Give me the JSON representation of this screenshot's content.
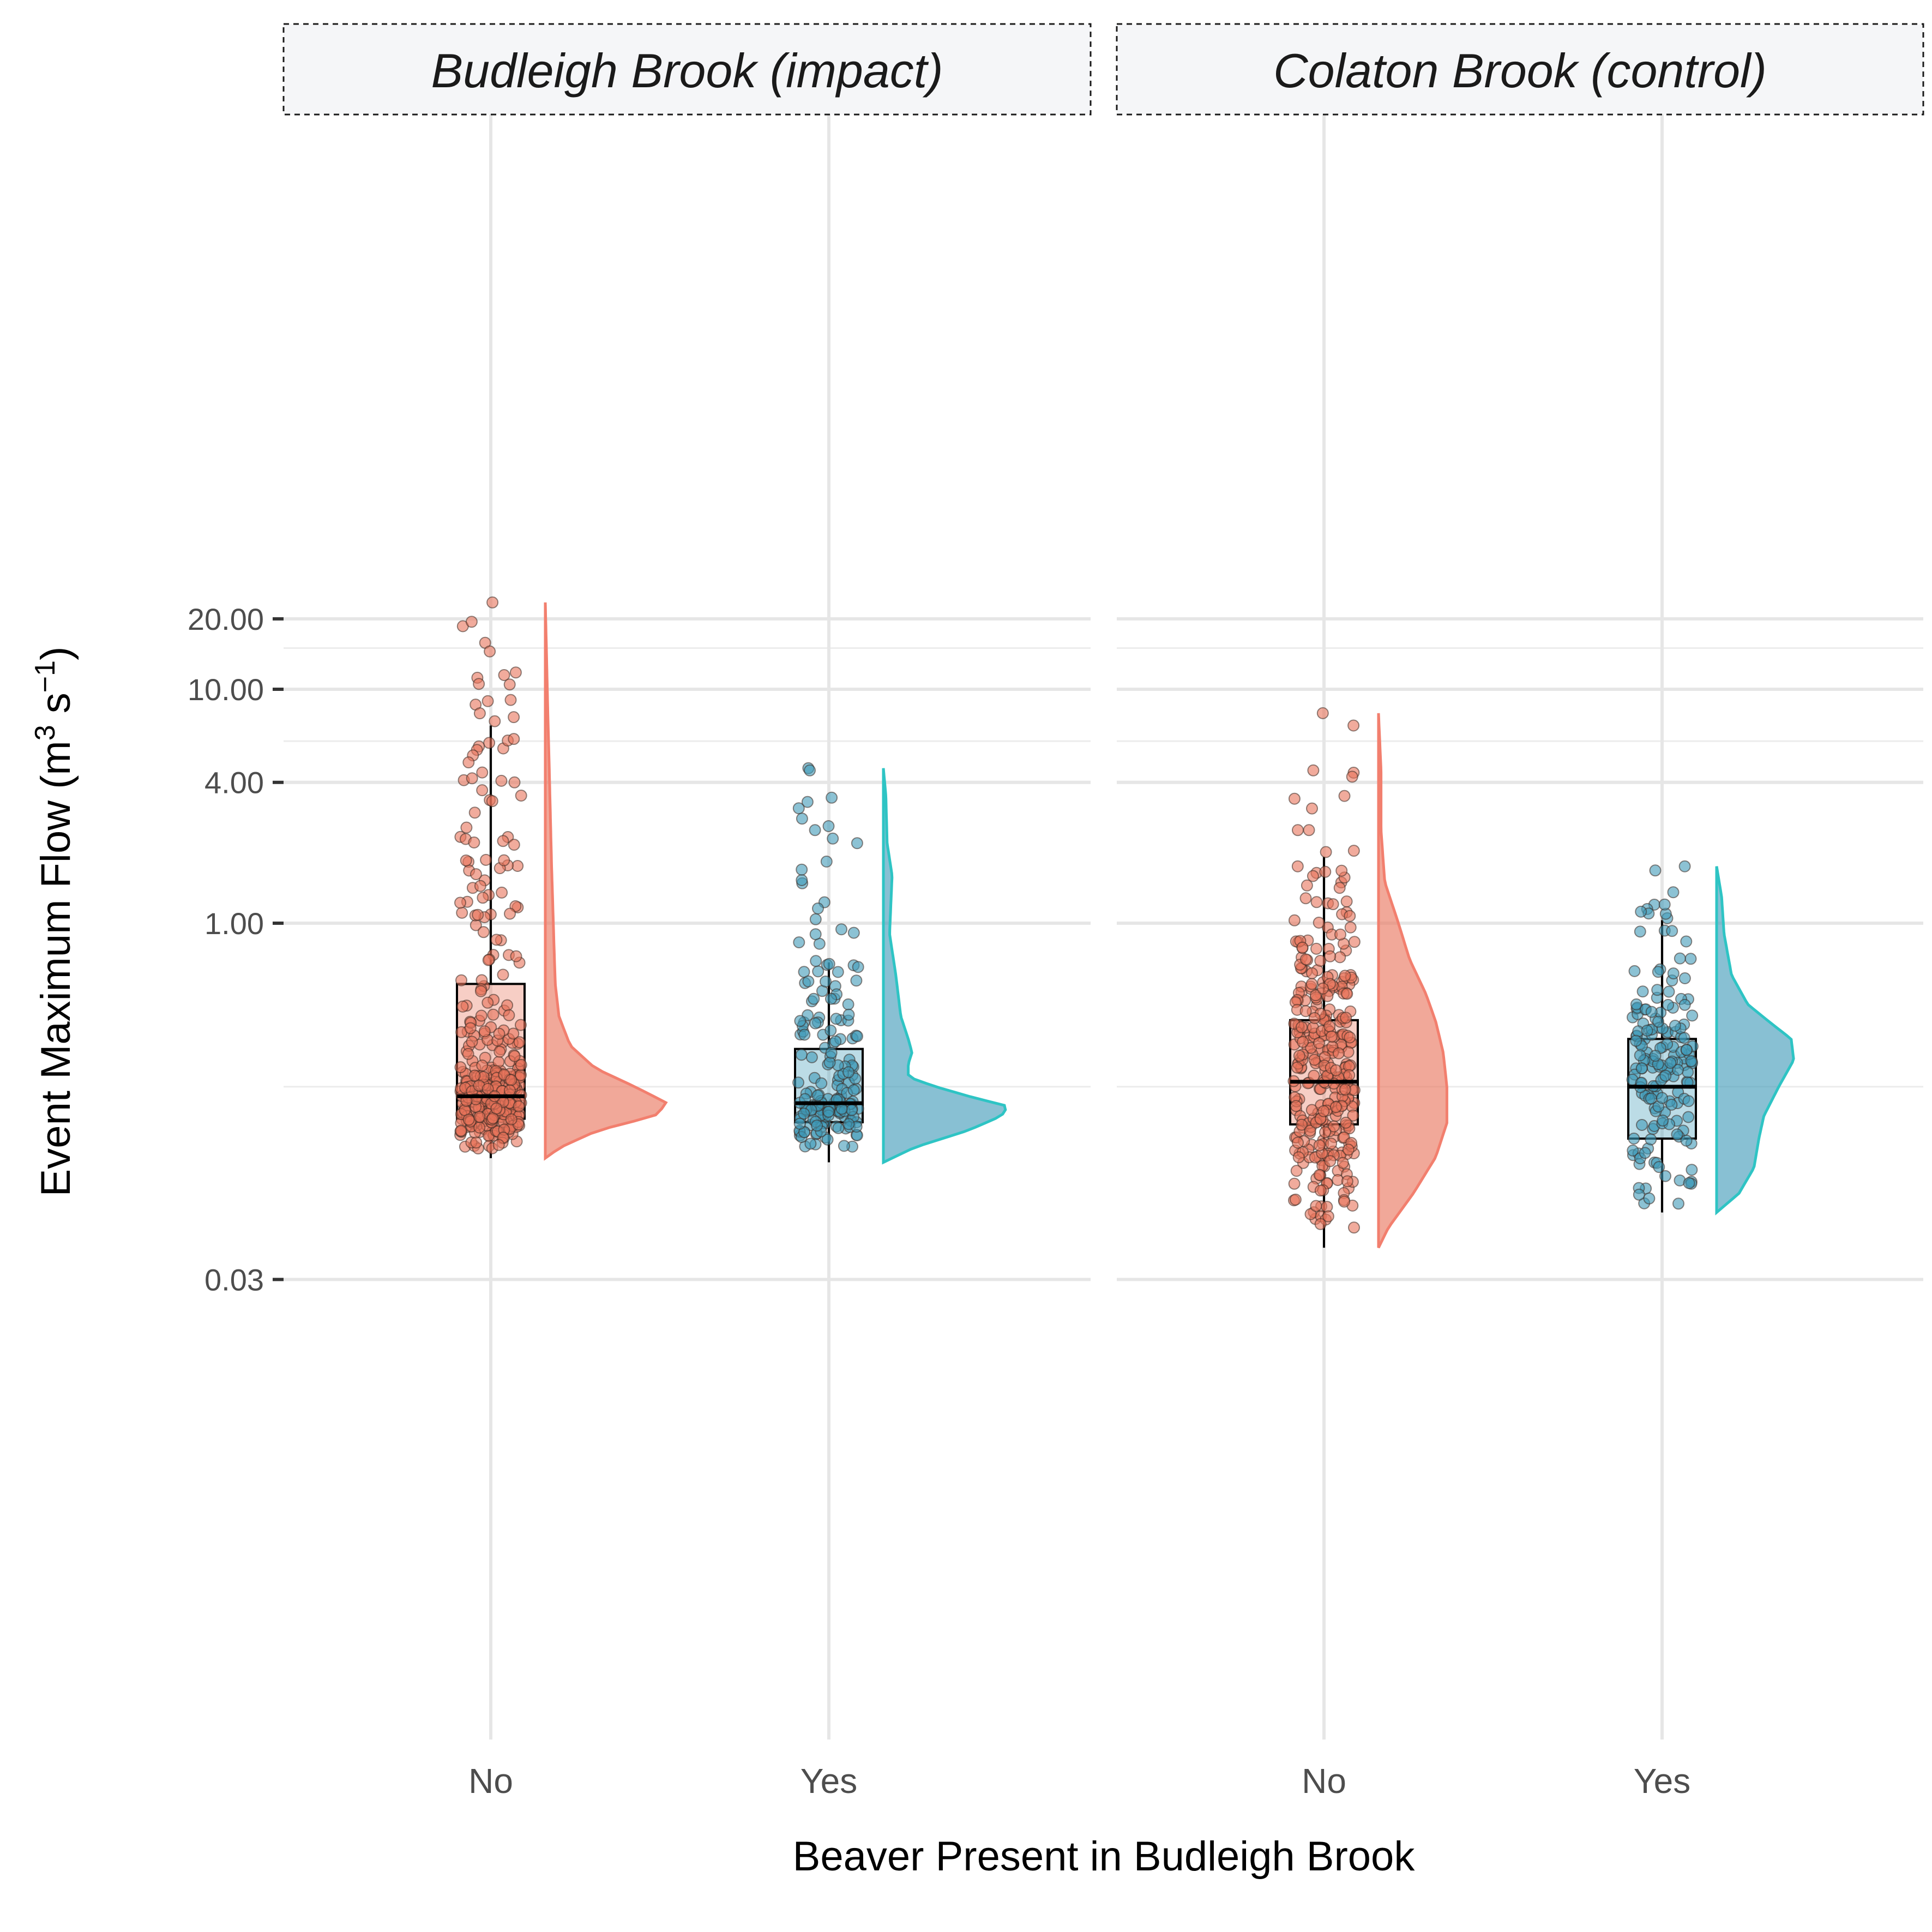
{
  "chart_data": {
    "type": "raincloud",
    "xlabel": "Beaver Present in Budleigh Brook",
    "ylabel": "Event Maximum Flow",
    "ylabel_unit": {
      "base": "m",
      "base_sup": "3",
      "sep": " s",
      "sep_sup": "−1"
    },
    "yscale": "log",
    "ylim": [
      0.03,
      35
    ],
    "y_ticks": [
      0.03,
      1,
      4,
      10,
      20
    ],
    "y_tick_labels": [
      "0.03",
      "1.00",
      "4.00",
      "10.00",
      "20.00"
    ],
    "y_minor_gridlines": [
      0.2,
      6,
      15
    ],
    "categories": [
      "No",
      "Yes"
    ],
    "colors": {
      "No": "#e8735a",
      "Yes": "#3f9ab8",
      "No_outline": "#f27f6e",
      "Yes_outline": "#2ec4c4"
    },
    "grid": true,
    "legend": "none",
    "panels": [
      {
        "strip": "Budleigh Brook (impact)",
        "groups": [
          {
            "category": "No",
            "n_points": 370,
            "box": {
              "q1": 0.146,
              "median": 0.182,
              "q3": 0.55,
              "whisker_low": 0.099,
              "whisker_high": 7.0
            },
            "range": [
              0.099,
              23.5
            ],
            "density": [
              [
                0.099,
                0.0
              ],
              [
                0.11,
                0.12
              ],
              [
                0.13,
                0.42
              ],
              [
                0.15,
                0.88
              ],
              [
                0.17,
                0.98
              ],
              [
                0.2,
                0.72
              ],
              [
                0.24,
                0.4
              ],
              [
                0.3,
                0.2
              ],
              [
                0.4,
                0.11
              ],
              [
                0.55,
                0.08
              ],
              [
                0.8,
                0.07
              ],
              [
                1.2,
                0.06
              ],
              [
                1.8,
                0.05
              ],
              [
                3,
                0.04
              ],
              [
                5,
                0.03
              ],
              [
                8,
                0.02
              ],
              [
                14,
                0.01
              ],
              [
                23.5,
                0.0
              ]
            ],
            "notable_points": [
              23.5,
              15.8,
              11.8,
              11.5,
              11.2,
              9.0,
              8.6,
              7.6,
              7.3,
              5.9,
              5.7
            ]
          },
          {
            "category": "Yes",
            "n_points": 180,
            "box": {
              "q1": 0.141,
              "median": 0.17,
              "q3": 0.29,
              "whisker_low": 0.095,
              "whisker_high": 0.68
            },
            "range": [
              0.095,
              4.6
            ],
            "density": [
              [
                0.095,
                0.0
              ],
              [
                0.11,
                0.25
              ],
              [
                0.13,
                0.68
              ],
              [
                0.15,
                0.95
              ],
              [
                0.165,
                1.0
              ],
              [
                0.18,
                0.72
              ],
              [
                0.2,
                0.42
              ],
              [
                0.22,
                0.2
              ],
              [
                0.25,
                0.2
              ],
              [
                0.28,
                0.23
              ],
              [
                0.32,
                0.2
              ],
              [
                0.4,
                0.14
              ],
              [
                0.6,
                0.1
              ],
              [
                0.9,
                0.05
              ],
              [
                1.6,
                0.07
              ],
              [
                2.2,
                0.03
              ],
              [
                3.5,
                0.02
              ],
              [
                4.6,
                0.0
              ]
            ],
            "notable_points": [
              4.6,
              4.5,
              3.3,
              3.1,
              2.8,
              2.6,
              2.5,
              2.3
            ]
          }
        ]
      },
      {
        "strip": "Colaton Brook (control)",
        "groups": [
          {
            "category": "No",
            "n_points": 330,
            "box": {
              "q1": 0.138,
              "median": 0.21,
              "q3": 0.385,
              "whisker_low": 0.041,
              "whisker_high": 1.92
            },
            "range": [
              0.041,
              7.9
            ],
            "density": [
              [
                0.041,
                0.0
              ],
              [
                0.05,
                0.08
              ],
              [
                0.07,
                0.28
              ],
              [
                0.1,
                0.46
              ],
              [
                0.14,
                0.55
              ],
              [
                0.2,
                0.55
              ],
              [
                0.28,
                0.52
              ],
              [
                0.38,
                0.46
              ],
              [
                0.5,
                0.38
              ],
              [
                0.7,
                0.25
              ],
              [
                1.0,
                0.16
              ],
              [
                1.5,
                0.05
              ],
              [
                2.5,
                0.02
              ],
              [
                4.5,
                0.02
              ],
              [
                7.9,
                0.0
              ]
            ],
            "notable_points": [
              7.9,
              7.0,
              4.5,
              4.4,
              3.5,
              2.5,
              2.5
            ]
          },
          {
            "category": "Yes",
            "n_points": 170,
            "box": {
              "q1": 0.12,
              "median": 0.2,
              "q3": 0.32,
              "whisker_low": 0.058,
              "whisker_high": 1.03
            },
            "range": [
              0.058,
              1.75
            ],
            "density": [
              [
                0.058,
                0.0
              ],
              [
                0.07,
                0.18
              ],
              [
                0.09,
                0.3
              ],
              [
                0.12,
                0.34
              ],
              [
                0.15,
                0.38
              ],
              [
                0.2,
                0.5
              ],
              [
                0.26,
                0.62
              ],
              [
                0.32,
                0.6
              ],
              [
                0.38,
                0.42
              ],
              [
                0.45,
                0.25
              ],
              [
                0.6,
                0.12
              ],
              [
                0.9,
                0.06
              ],
              [
                1.3,
                0.04
              ],
              [
                1.75,
                0.0
              ]
            ],
            "notable_points": [
              1.75,
              1.68,
              1.2,
              1.15,
              1.1,
              1.05
            ]
          }
        ]
      }
    ]
  }
}
